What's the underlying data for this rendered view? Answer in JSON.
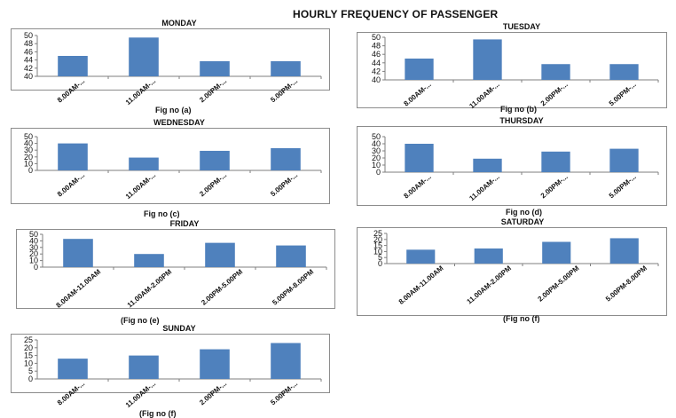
{
  "header": {
    "title": "HOURLY FREQUENCY OF PASSENGER"
  },
  "chart_data": [
    {
      "type": "bar",
      "title": "MONDAY",
      "caption": "Fig no (a)",
      "categories": [
        "8.00AM-...",
        "11.00AM-...",
        "2.00PM-...",
        "5.00PM-..."
      ],
      "values": [
        45,
        49.5,
        43.7,
        43.7
      ],
      "ylim": [
        40,
        50
      ],
      "yticks": [
        40,
        42,
        44,
        46,
        48,
        50
      ]
    },
    {
      "type": "bar",
      "title": "TUESDAY",
      "caption": "Fig no (b)",
      "categories": [
        "8.00AM-...",
        "11.00AM-...",
        "2.00PM-...",
        "5.00PM-..."
      ],
      "values": [
        45,
        49.5,
        43.7,
        43.7
      ],
      "ylim": [
        40,
        50
      ],
      "yticks": [
        40,
        42,
        44,
        46,
        48,
        50
      ]
    },
    {
      "type": "bar",
      "title": "WEDNESDAY",
      "caption": "Fig no (c)",
      "categories": [
        "8.00AM-...",
        "11.00AM-...",
        "2.00PM-...",
        "5.00PM-..."
      ],
      "values": [
        40,
        19,
        29,
        33
      ],
      "ylim": [
        0,
        50
      ],
      "yticks": [
        0,
        10,
        20,
        30,
        40,
        50
      ]
    },
    {
      "type": "bar",
      "title": "THURSDAY",
      "caption": "Fig no (d)",
      "categories": [
        "8.00AM-...",
        "11.00AM-...",
        "2.00PM-...",
        "5.00PM-..."
      ],
      "values": [
        40,
        19,
        29,
        33
      ],
      "ylim": [
        0,
        50
      ],
      "yticks": [
        0,
        10,
        20,
        30,
        40,
        50
      ]
    },
    {
      "type": "bar",
      "title": "FRIDAY",
      "caption": "(Fig no (e)",
      "categories": [
        "8.00AM-11.00AM",
        "11.00AM-2.00PM",
        "2.00PM-5.00PM",
        "5.00PM-8.00PM"
      ],
      "values": [
        43,
        20,
        37,
        33
      ],
      "ylim": [
        0,
        50
      ],
      "yticks": [
        0,
        10,
        20,
        30,
        40,
        50
      ]
    },
    {
      "type": "bar",
      "title": "SATURDAY",
      "caption": "(Fig no (f)",
      "categories": [
        "8.00AM-11.00AM",
        "11.00AM-2.00PM",
        "2.00PM-5.00PM",
        "5.00PM-8.00PM"
      ],
      "values": [
        11.5,
        12.5,
        18,
        21
      ],
      "ylim": [
        0,
        25
      ],
      "yticks": [
        0,
        5,
        10,
        15,
        20,
        25
      ]
    },
    {
      "type": "bar",
      "title": "SUNDAY",
      "caption": "(Fig no (f)",
      "categories": [
        "8.00AM-...",
        "11.00AM-...",
        "2.00PM-...",
        "5.00PM-..."
      ],
      "values": [
        13,
        15,
        19,
        23
      ],
      "ylim": [
        0,
        25
      ],
      "yticks": [
        0,
        5,
        10,
        15,
        20,
        25
      ]
    }
  ]
}
